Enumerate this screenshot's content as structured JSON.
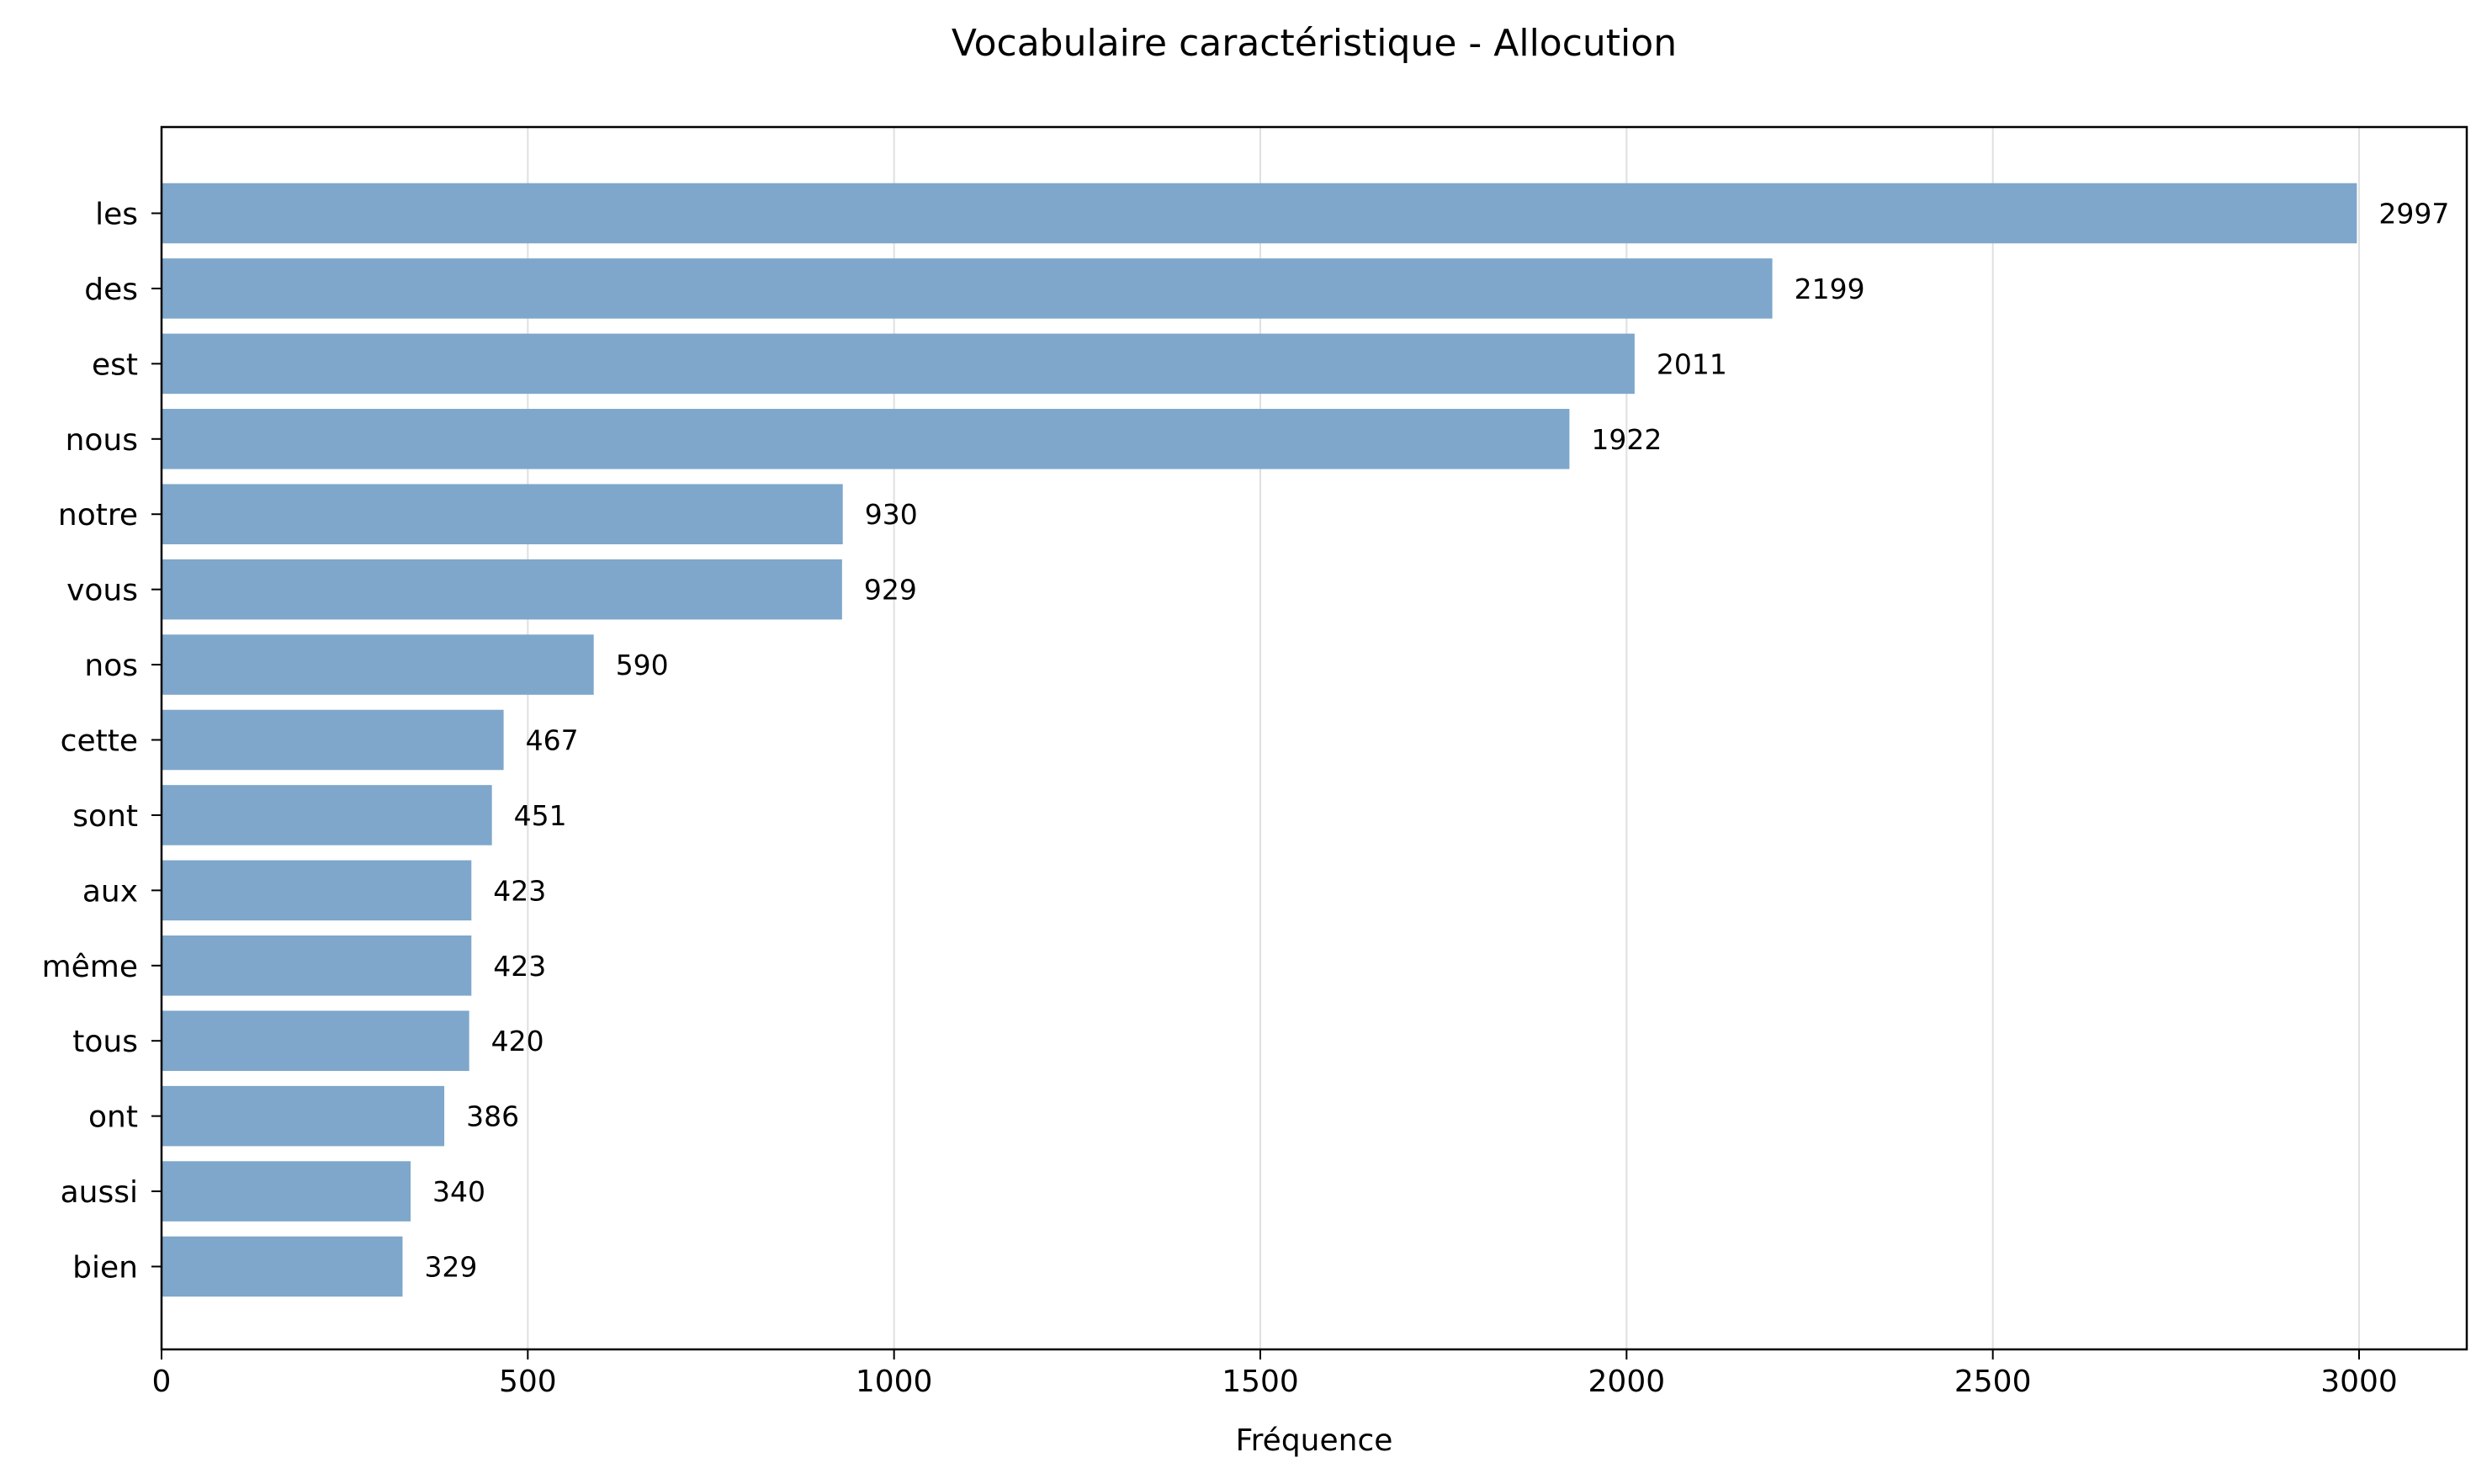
{
  "chart_data": {
    "type": "bar",
    "orientation": "horizontal",
    "title": "Vocabulaire caractéristique - Allocution",
    "xlabel": "Fréquence",
    "ylabel": "",
    "categories": [
      "les",
      "des",
      "est",
      "nous",
      "notre",
      "vous",
      "nos",
      "cette",
      "sont",
      "aux",
      "même",
      "tous",
      "ont",
      "aussi",
      "bien"
    ],
    "values": [
      2997,
      2199,
      2011,
      1922,
      930,
      929,
      590,
      467,
      451,
      423,
      423,
      420,
      386,
      340,
      329
    ],
    "data_labels": [
      "2997",
      "2199",
      "2011",
      "1922",
      "930",
      "929",
      "590",
      "467",
      "451",
      "423",
      "423",
      "420",
      "386",
      "340",
      "329"
    ],
    "xlim": [
      0,
      3147
    ],
    "xticks": [
      0,
      500,
      1000,
      1500,
      2000,
      2500,
      3000
    ],
    "xtick_labels": [
      "0",
      "500",
      "1000",
      "1500",
      "2000",
      "2500",
      "3000"
    ],
    "grid": "vertical",
    "bar_color": "#7ea7cb"
  }
}
